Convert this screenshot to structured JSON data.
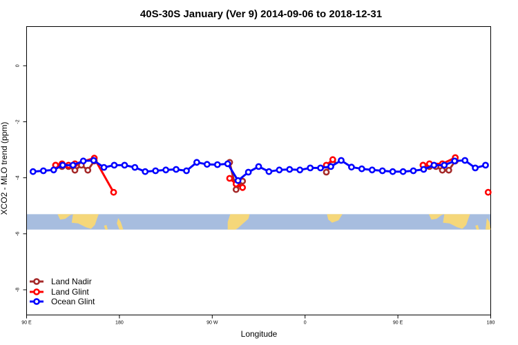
{
  "chart_data": {
    "type": "line",
    "title": "40S-30S January (Ver 9)   2014-09-06 to 2018-12-31",
    "xlabel": "Longitude",
    "ylabel": "XCO2 - MLO trend (ppm)",
    "xlim": [
      90,
      450
    ],
    "ylim": [
      -8.9,
      1.4
    ],
    "x_ticks": [
      {
        "value": 90,
        "label": "90 E"
      },
      {
        "value": 162,
        "label": "180"
      },
      {
        "value": 234,
        "label": "90 W"
      },
      {
        "value": 306,
        "label": "0"
      },
      {
        "value": 378,
        "label": "90 E"
      },
      {
        "value": 450,
        "label": "180"
      }
    ],
    "y_ticks": [
      {
        "value": 0,
        "label": "0"
      },
      {
        "value": -2,
        "label": "-2"
      },
      {
        "value": -4,
        "label": "-4"
      },
      {
        "value": -6,
        "label": "-6"
      },
      {
        "value": -8,
        "label": "-8"
      }
    ],
    "map_band": {
      "ymin": -5.85,
      "ymax": -5.3,
      "ocean_color": "#a7bddf",
      "land_color": "#f5d77a"
    },
    "series": [
      {
        "name": "Land Nadir",
        "color": "#a52a2a",
        "segments": [
          [
            [
              112.5,
              -3.55
            ],
            [
              117.5,
              -3.6
            ],
            [
              122.5,
              -3.6
            ],
            [
              127.5,
              -3.73
            ],
            [
              132.5,
              -3.55
            ],
            [
              137.5,
              -3.73
            ],
            [
              142.5,
              -3.4
            ]
          ],
          [
            [
              247.5,
              -3.45
            ],
            [
              252.5,
              -4.42
            ],
            [
              257.5,
              -4.12
            ]
          ],
          [
            [
              322.5,
              -3.8
            ],
            [
              327.5,
              -3.45
            ]
          ],
          [
            [
              397.5,
              -3.55
            ],
            [
              402.5,
              -3.6
            ],
            [
              407.5,
              -3.6
            ],
            [
              412.5,
              -3.73
            ],
            [
              417.5,
              -3.73
            ],
            [
              422.5,
              -3.4
            ]
          ]
        ]
      },
      {
        "name": "Land Glint",
        "color": "#ff0000",
        "segments": [
          [
            [
              112.5,
              -3.55
            ],
            [
              117.5,
              -3.5
            ],
            [
              122.5,
              -3.55
            ],
            [
              127.5,
              -3.5
            ],
            [
              142.5,
              -3.3
            ],
            [
              157.5,
              -4.52
            ]
          ],
          [
            [
              247.5,
              -4.02
            ],
            [
              252.5,
              -4.22
            ],
            [
              257.5,
              -4.35
            ]
          ],
          [
            [
              322.5,
              -3.55
            ],
            [
              327.5,
              -3.35
            ]
          ],
          [
            [
              397.5,
              -3.55
            ],
            [
              402.5,
              -3.5
            ],
            [
              412.5,
              -3.5
            ],
            [
              422.5,
              -3.28
            ]
          ],
          [
            [
              448,
              -4.52
            ]
          ]
        ]
      },
      {
        "name": "Ocean Glint",
        "color": "#0000ff",
        "segments": [
          [
            [
              95,
              -3.78
            ],
            [
              103,
              -3.75
            ],
            [
              111,
              -3.72
            ],
            [
              118,
              -3.55
            ],
            [
              126,
              -3.55
            ],
            [
              134,
              -3.4
            ],
            [
              142,
              -3.38
            ],
            [
              150,
              -3.63
            ],
            [
              158,
              -3.55
            ],
            [
              166,
              -3.55
            ],
            [
              174,
              -3.63
            ],
            [
              182,
              -3.78
            ],
            [
              190,
              -3.75
            ],
            [
              198,
              -3.72
            ],
            [
              206,
              -3.7
            ],
            [
              214,
              -3.75
            ],
            [
              222,
              -3.45
            ],
            [
              230,
              -3.52
            ],
            [
              238,
              -3.53
            ],
            [
              246,
              -3.5
            ],
            [
              254,
              -4.1
            ],
            [
              262,
              -3.8
            ],
            [
              270,
              -3.6
            ],
            [
              278,
              -3.78
            ],
            [
              286,
              -3.72
            ],
            [
              294,
              -3.7
            ],
            [
              302,
              -3.72
            ],
            [
              310,
              -3.65
            ],
            [
              318,
              -3.65
            ],
            [
              326,
              -3.6
            ],
            [
              334,
              -3.38
            ],
            [
              342,
              -3.62
            ],
            [
              350,
              -3.68
            ],
            [
              358,
              -3.72
            ],
            [
              366,
              -3.75
            ],
            [
              374,
              -3.78
            ],
            [
              382,
              -3.78
            ],
            [
              390,
              -3.75
            ],
            [
              398,
              -3.7
            ],
            [
              406,
              -3.55
            ],
            [
              414,
              -3.55
            ],
            [
              422,
              -3.4
            ],
            [
              430,
              -3.38
            ],
            [
              438,
              -3.65
            ],
            [
              446,
              -3.55
            ]
          ]
        ]
      }
    ],
    "legend": {
      "position": "bottom-left"
    }
  }
}
